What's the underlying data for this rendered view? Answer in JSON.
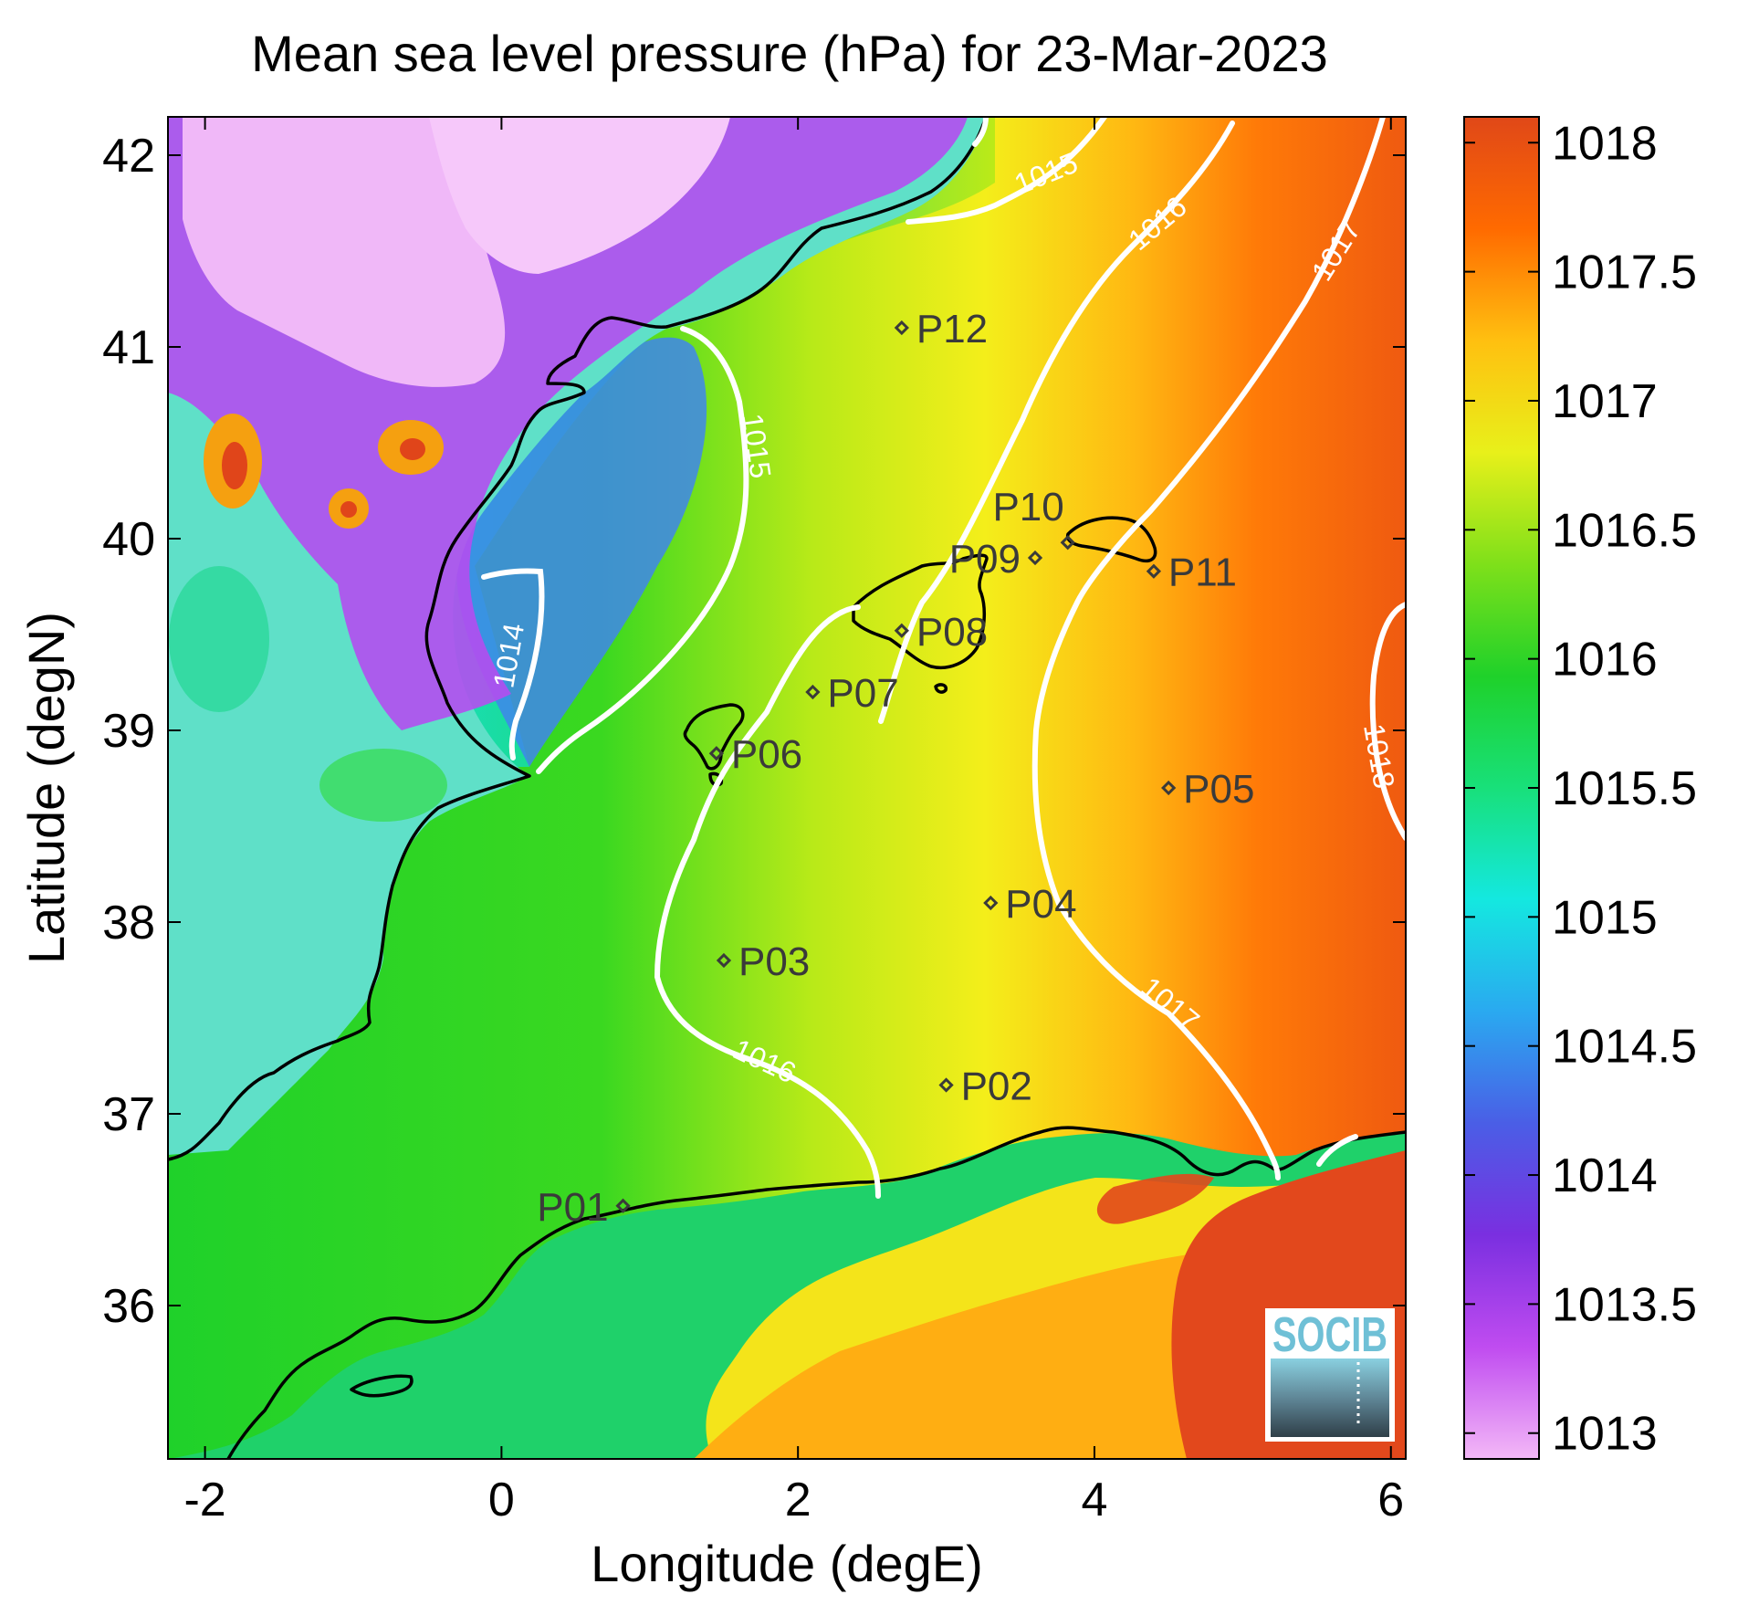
{
  "title": "Mean sea level pressure (hPa) for 23-Mar-2023",
  "xlabel": "Longitude (degE)",
  "ylabel": "Latitude (degN)",
  "logo_text": "SOCIB",
  "colors": {
    "land_coast": "#000000",
    "contour": "#ffffff",
    "station": "#3a3a3a",
    "colormap": [
      "#f3b8f7",
      "#c04cf0",
      "#7a2fe0",
      "#4a5ee6",
      "#2aa9f0",
      "#14e8e0",
      "#18e07a",
      "#1fd12a",
      "#7fe01a",
      "#e8f01a",
      "#ffc010",
      "#ff6a00",
      "#e04818"
    ]
  },
  "chart_data": {
    "type": "heatmap",
    "title": "Mean sea level pressure (hPa) for 23-Mar-2023",
    "xlabel": "Longitude (degE)",
    "ylabel": "Latitude (degN)",
    "xlim": [
      -2.25,
      6.1
    ],
    "ylim": [
      35.2,
      42.2
    ],
    "xticks": [
      -2,
      0,
      2,
      4,
      6
    ],
    "xtick_labels": [
      "-2",
      "0",
      "2",
      "4",
      "6"
    ],
    "yticks": [
      36,
      37,
      38,
      39,
      40,
      41,
      42
    ],
    "ytick_labels": [
      "36",
      "37",
      "38",
      "39",
      "40",
      "41",
      "42"
    ],
    "colorbar": {
      "range": [
        1012.9,
        1018.1
      ],
      "ticks": [
        1013,
        1013.5,
        1014,
        1014.5,
        1015,
        1015.5,
        1016,
        1016.5,
        1017,
        1017.5,
        1018
      ],
      "tick_labels": [
        "1013",
        "1013.5",
        "1014",
        "1014.5",
        "1015",
        "1015.5",
        "1016",
        "1016.5",
        "1017",
        "1017.5",
        "1018"
      ]
    },
    "contour_labels": [
      "1014",
      "1015",
      "1015",
      "1016",
      "1016",
      "1017",
      "1017",
      "1018"
    ],
    "stations": [
      {
        "name": "P01",
        "lon": 0.82,
        "lat": 36.52
      },
      {
        "name": "P02",
        "lon": 3.0,
        "lat": 37.15
      },
      {
        "name": "P03",
        "lon": 1.5,
        "lat": 37.8
      },
      {
        "name": "P04",
        "lon": 3.3,
        "lat": 38.1
      },
      {
        "name": "P05",
        "lon": 4.5,
        "lat": 38.7
      },
      {
        "name": "P06",
        "lon": 1.45,
        "lat": 38.88
      },
      {
        "name": "P07",
        "lon": 2.1,
        "lat": 39.2
      },
      {
        "name": "P08",
        "lon": 2.7,
        "lat": 39.52
      },
      {
        "name": "P09",
        "lon": 3.6,
        "lat": 39.9
      },
      {
        "name": "P10",
        "lon": 3.82,
        "lat": 39.98
      },
      {
        "name": "P11",
        "lon": 4.4,
        "lat": 39.83
      },
      {
        "name": "P12",
        "lon": 2.7,
        "lat": 41.1
      }
    ]
  }
}
